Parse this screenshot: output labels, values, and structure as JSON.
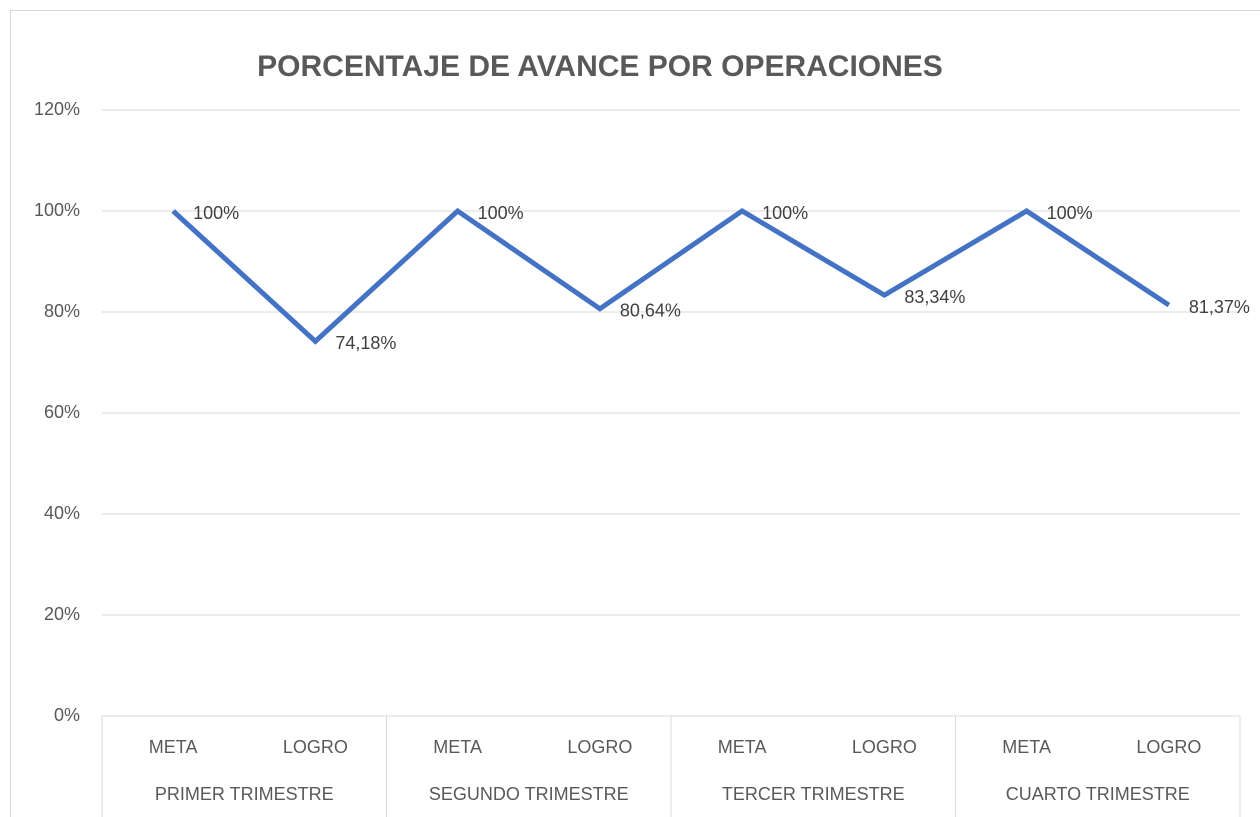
{
  "chart_data": {
    "type": "line",
    "title": "PORCENTAJE DE AVANCE POR OPERACIONES",
    "categories": [
      "META",
      "LOGRO",
      "META",
      "LOGRO",
      "META",
      "LOGRO",
      "META",
      "LOGRO"
    ],
    "groups": [
      "PRIMER TRIMESTRE",
      "SEGUNDO TRIMESTRE",
      "TERCER TRIMESTRE",
      "CUARTO TRIMESTRE"
    ],
    "series": [
      {
        "color": "#4472c4",
        "values": [
          100,
          74.18,
          100,
          80.64,
          100,
          83.34,
          100,
          81.37
        ],
        "value_labels": [
          "100%",
          "74,18%",
          "100%",
          "80,64%",
          "100%",
          "83,34%",
          "100%",
          "81,37%"
        ]
      }
    ],
    "ylim": [
      0,
      120
    ],
    "yticks": [
      {
        "value": 0,
        "label": "0%"
      },
      {
        "value": 20,
        "label": "20%"
      },
      {
        "value": 40,
        "label": "40%"
      },
      {
        "value": 60,
        "label": "60%"
      },
      {
        "value": 80,
        "label": "80%"
      },
      {
        "value": 100,
        "label": "100%"
      },
      {
        "value": 120,
        "label": "120%"
      }
    ],
    "grid": true
  }
}
